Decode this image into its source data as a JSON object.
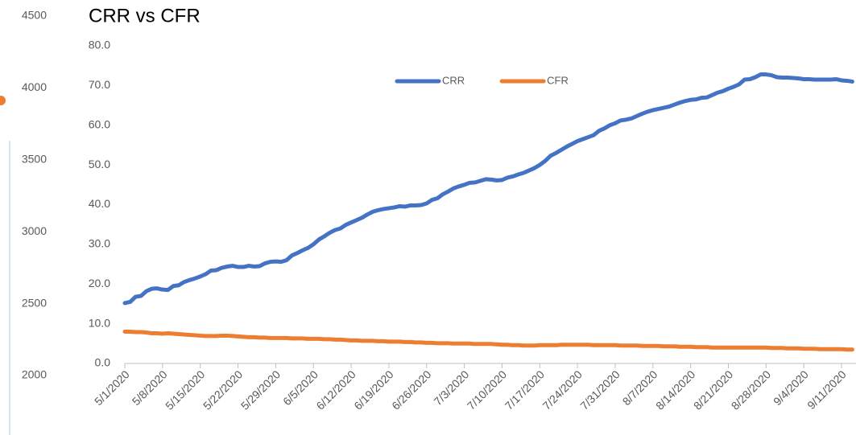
{
  "chart_data": {
    "type": "line",
    "title": "CRR vs CFR",
    "categories": [
      "5/1/2020",
      null,
      null,
      null,
      null,
      null,
      null,
      "5/8/2020",
      null,
      null,
      null,
      null,
      null,
      null,
      "5/15/2020",
      null,
      null,
      null,
      null,
      null,
      null,
      "5/22/2020",
      null,
      null,
      null,
      null,
      null,
      null,
      "5/29/2020",
      null,
      null,
      null,
      null,
      null,
      null,
      "6/5/2020",
      null,
      null,
      null,
      null,
      null,
      null,
      "6/12/2020",
      null,
      null,
      null,
      null,
      null,
      null,
      "6/19/2020",
      null,
      null,
      null,
      null,
      null,
      null,
      "6/26/2020",
      null,
      null,
      null,
      null,
      null,
      null,
      "7/3/2020",
      null,
      null,
      null,
      null,
      null,
      null,
      "7/10/2020",
      null,
      null,
      null,
      null,
      null,
      null,
      "7/17/2020",
      null,
      null,
      null,
      null,
      null,
      null,
      "7/24/2020",
      null,
      null,
      null,
      null,
      null,
      null,
      "7/31/2020",
      null,
      null,
      null,
      null,
      null,
      null,
      "8/7/2020",
      null,
      null,
      null,
      null,
      null,
      null,
      "8/14/2020",
      null,
      null,
      null,
      null,
      null,
      null,
      "8/21/2020",
      null,
      null,
      null,
      null,
      null,
      null,
      "8/28/2020",
      null,
      null,
      null,
      null,
      null,
      null,
      "9/4/2020",
      null,
      null,
      null,
      null,
      null,
      null,
      "9/11/2020",
      null,
      null
    ],
    "series": [
      {
        "name": "CRR",
        "color": "#4472c4",
        "values": [
          15.2,
          15.5,
          16.8,
          17.0,
          18.2,
          18.8,
          18.9,
          18.6,
          18.5,
          19.5,
          19.7,
          20.5,
          21.0,
          21.4,
          21.9,
          22.5,
          23.4,
          23.5,
          24.1,
          24.4,
          24.6,
          24.3,
          24.3,
          24.6,
          24.4,
          24.5,
          25.2,
          25.6,
          25.7,
          25.6,
          26.0,
          27.2,
          27.8,
          28.5,
          29.1,
          30.0,
          31.2,
          32.0,
          32.9,
          33.6,
          34.0,
          34.9,
          35.5,
          36.1,
          36.7,
          37.5,
          38.2,
          38.6,
          38.9,
          39.1,
          39.3,
          39.6,
          39.5,
          39.8,
          39.8,
          39.9,
          40.3,
          41.2,
          41.6,
          42.6,
          43.3,
          44.1,
          44.6,
          45.0,
          45.5,
          45.6,
          46.0,
          46.4,
          46.3,
          46.1,
          46.2,
          46.8,
          47.1,
          47.6,
          48.0,
          48.6,
          49.2,
          50.0,
          51.0,
          52.3,
          53.0,
          53.8,
          54.6,
          55.3,
          56.0,
          56.5,
          57.0,
          57.5,
          58.6,
          59.2,
          60.0,
          60.5,
          61.2,
          61.4,
          61.7,
          62.3,
          62.9,
          63.4,
          63.8,
          64.1,
          64.4,
          64.7,
          65.2,
          65.7,
          66.1,
          66.4,
          66.5,
          66.9,
          67.0,
          67.6,
          68.2,
          68.6,
          69.2,
          69.7,
          70.3,
          71.5,
          71.6,
          72.1,
          72.8,
          72.8,
          72.6,
          72.1,
          72.0,
          72.0,
          71.9,
          71.8,
          71.6,
          71.6,
          71.5,
          71.5,
          71.5,
          71.5,
          71.6,
          71.3,
          71.2,
          71.0
        ]
      },
      {
        "name": "CFR",
        "color": "#ed7d31",
        "values": [
          8.0,
          8.0,
          7.9,
          7.9,
          7.8,
          7.6,
          7.6,
          7.5,
          7.6,
          7.5,
          7.4,
          7.3,
          7.2,
          7.1,
          7.0,
          6.9,
          6.9,
          6.9,
          7.0,
          7.0,
          6.9,
          6.8,
          6.7,
          6.6,
          6.6,
          6.5,
          6.5,
          6.4,
          6.4,
          6.4,
          6.4,
          6.3,
          6.3,
          6.3,
          6.2,
          6.2,
          6.2,
          6.1,
          6.1,
          6.0,
          6.0,
          5.9,
          5.8,
          5.8,
          5.7,
          5.7,
          5.7,
          5.6,
          5.6,
          5.5,
          5.5,
          5.5,
          5.4,
          5.4,
          5.3,
          5.3,
          5.2,
          5.2,
          5.1,
          5.1,
          5.1,
          5.0,
          5.0,
          5.0,
          5.0,
          4.9,
          4.9,
          4.9,
          4.9,
          4.8,
          4.7,
          4.7,
          4.6,
          4.6,
          4.5,
          4.5,
          4.5,
          4.6,
          4.6,
          4.6,
          4.6,
          4.7,
          4.7,
          4.7,
          4.7,
          4.7,
          4.7,
          4.6,
          4.6,
          4.6,
          4.6,
          4.6,
          4.5,
          4.5,
          4.5,
          4.5,
          4.4,
          4.4,
          4.4,
          4.4,
          4.3,
          4.3,
          4.3,
          4.2,
          4.2,
          4.2,
          4.1,
          4.1,
          4.1,
          4.0,
          4.0,
          4.0,
          4.0,
          4.0,
          4.0,
          4.0,
          4.0,
          4.0,
          4.0,
          4.0,
          3.9,
          3.9,
          3.9,
          3.8,
          3.8,
          3.8,
          3.7,
          3.7,
          3.7,
          3.6,
          3.6,
          3.6,
          3.6,
          3.6,
          3.5,
          3.5
        ]
      }
    ],
    "ylim": [
      0,
      80
    ],
    "yticks": [
      {
        "value": 0,
        "label": "0.0"
      },
      {
        "value": 10,
        "label": "10.0"
      },
      {
        "value": 20,
        "label": "20.0"
      },
      {
        "value": 30,
        "label": "30.0"
      },
      {
        "value": 40,
        "label": "40.0"
      },
      {
        "value": 50,
        "label": "50.0"
      },
      {
        "value": 60,
        "label": "60.0"
      },
      {
        "value": 70,
        "label": "70.0"
      },
      {
        "value": 80,
        "label": "80.0"
      }
    ],
    "y2lim": [
      2000,
      4500
    ],
    "y2ticks": [
      2000,
      2500,
      3000,
      3500,
      4000,
      4500
    ],
    "grid": false,
    "legend": "top"
  }
}
